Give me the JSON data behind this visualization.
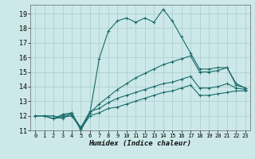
{
  "xlabel": "Humidex (Indice chaleur)",
  "ylabel": "",
  "xlim": [
    -0.5,
    23.5
  ],
  "ylim": [
    11,
    19.6
  ],
  "yticks": [
    11,
    12,
    13,
    14,
    15,
    16,
    17,
    18,
    19
  ],
  "xticks": [
    0,
    1,
    2,
    3,
    4,
    5,
    6,
    7,
    8,
    9,
    10,
    11,
    12,
    13,
    14,
    15,
    16,
    17,
    18,
    19,
    20,
    21,
    22,
    23
  ],
  "bg_color": "#cce8e8",
  "grid_color": "#aacccc",
  "line_color": "#1a6b6b",
  "lines": [
    [
      0,
      12,
      1,
      12,
      2,
      12,
      3,
      11.8,
      4,
      12.2,
      5,
      11,
      6,
      12.2,
      7,
      15.9,
      8,
      17.8,
      9,
      18.5,
      10,
      18.7,
      11,
      18.4,
      12,
      18.7,
      13,
      18.4,
      14,
      19.3,
      15,
      18.5,
      16,
      17.4,
      17,
      16.3,
      18,
      15.2,
      19,
      15.2,
      20,
      15.3,
      21,
      15.3,
      22,
      14.2,
      23,
      13.9
    ],
    [
      0,
      12,
      1,
      12,
      2,
      11.8,
      3,
      12.1,
      4,
      12.2,
      5,
      11.1,
      6,
      12.2,
      7,
      12.8,
      8,
      13.3,
      9,
      13.8,
      10,
      14.2,
      11,
      14.6,
      12,
      14.9,
      13,
      15.2,
      14,
      15.5,
      15,
      15.7,
      16,
      15.9,
      17,
      16.1,
      18,
      15.0,
      19,
      15.0,
      20,
      15.1,
      21,
      15.3,
      22,
      14.1,
      23,
      13.9
    ],
    [
      0,
      12,
      1,
      12,
      2,
      11.8,
      3,
      12.0,
      4,
      12.1,
      5,
      11.2,
      6,
      12.3,
      7,
      12.5,
      8,
      12.9,
      9,
      13.2,
      10,
      13.4,
      11,
      13.6,
      12,
      13.8,
      13,
      14.0,
      14,
      14.2,
      15,
      14.3,
      16,
      14.5,
      17,
      14.7,
      18,
      13.9,
      19,
      13.9,
      20,
      14.0,
      21,
      14.2,
      22,
      13.9,
      23,
      13.8
    ],
    [
      0,
      12,
      1,
      12,
      2,
      11.8,
      3,
      11.9,
      4,
      12.0,
      5,
      11.1,
      6,
      12.0,
      7,
      12.2,
      8,
      12.5,
      9,
      12.6,
      10,
      12.8,
      11,
      13.0,
      12,
      13.2,
      13,
      13.4,
      14,
      13.6,
      15,
      13.7,
      16,
      13.9,
      17,
      14.1,
      18,
      13.4,
      19,
      13.4,
      20,
      13.5,
      21,
      13.6,
      22,
      13.7,
      23,
      13.7
    ]
  ]
}
